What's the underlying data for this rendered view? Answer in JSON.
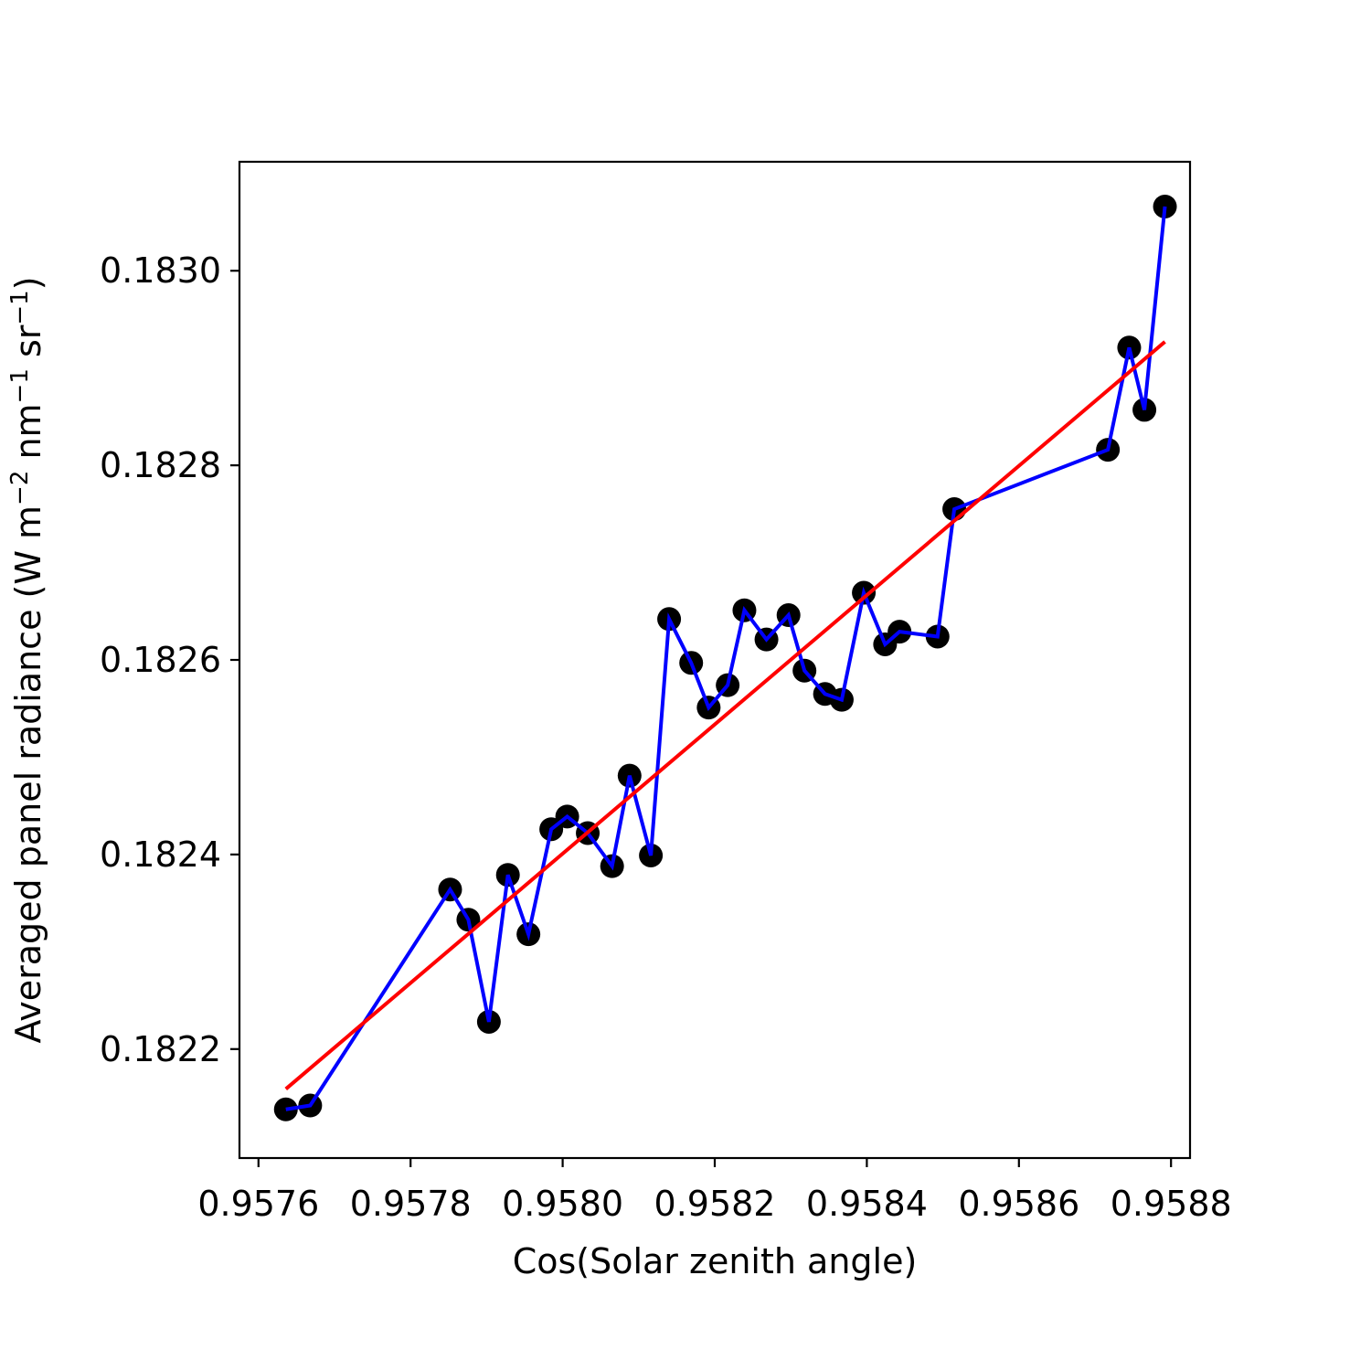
{
  "chart_data": {
    "type": "scatter",
    "title": "",
    "xlabel": "Cos(Solar zenith angle)",
    "ylabel_main": "Averaged panel radiance (W m",
    "ylabel_unit_m_exp": "−2",
    "ylabel_nm": " nm",
    "ylabel_nm_exp": "−1",
    "ylabel_sr": " sr",
    "ylabel_sr_exp": "−1",
    "ylabel_close": ")",
    "xlim": [
      0.957575,
      0.958825
    ],
    "ylim": [
      0.182088,
      0.183112
    ],
    "xticks": [
      0.9576,
      0.9578,
      0.958,
      0.9582,
      0.9584,
      0.9586,
      0.9588
    ],
    "xtick_labels": [
      "0.9576",
      "0.9578",
      "0.9580",
      "0.9582",
      "0.9584",
      "0.9586",
      "0.9588"
    ],
    "yticks": [
      0.1822,
      0.1824,
      0.1826,
      0.1828,
      0.183
    ],
    "ytick_labels": [
      "0.1822",
      "0.1824",
      "0.1826",
      "0.1828",
      "0.1830"
    ],
    "grid": false,
    "series": [
      {
        "style": "markers-and-line",
        "marker_color": "#000000",
        "line_color": "#0000ff",
        "x": [
          0.957636,
          0.957668,
          0.957852,
          0.957876,
          0.957903,
          0.957928,
          0.957955,
          0.957985,
          0.958006,
          0.958033,
          0.958065,
          0.958088,
          0.958116,
          0.95814,
          0.958169,
          0.958192,
          0.958217,
          0.958239,
          0.958268,
          0.958297,
          0.958318,
          0.958345,
          0.958367,
          0.958396,
          0.958424,
          0.958443,
          0.958493,
          0.958515,
          0.958717,
          0.958745,
          0.958765,
          0.958792
        ],
        "y": [
          0.182138,
          0.182142,
          0.182364,
          0.182333,
          0.182228,
          0.182379,
          0.182318,
          0.182426,
          0.182439,
          0.182422,
          0.182388,
          0.182481,
          0.182399,
          0.182642,
          0.182597,
          0.182551,
          0.182574,
          0.182651,
          0.182621,
          0.182646,
          0.182589,
          0.182565,
          0.182559,
          0.182669,
          0.182616,
          0.182629,
          0.182624,
          0.182755,
          0.182816,
          0.182921,
          0.182857,
          0.183066
        ]
      },
      {
        "style": "line",
        "line_color": "#ff0000",
        "x": [
          0.957636,
          0.958792
        ],
        "y": [
          0.182159,
          0.182927
        ]
      }
    ]
  }
}
